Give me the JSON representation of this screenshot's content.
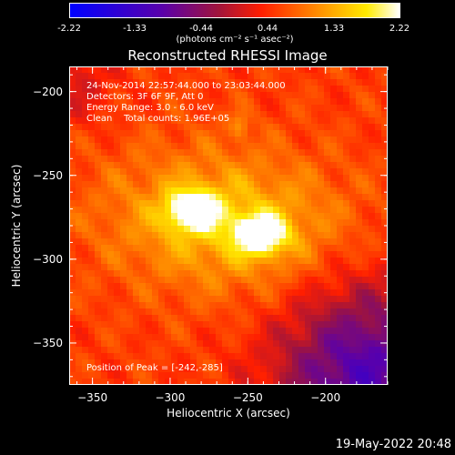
{
  "colorbar": {
    "ticks": [
      "-2.22",
      "-1.33",
      "-0.44",
      "0.44",
      "1.33",
      "2.22"
    ],
    "units": "(photons cm⁻² s⁻¹ asec⁻²)"
  },
  "plot": {
    "title": "Reconstructed RHESSI Image",
    "info": {
      "time": "24-Nov-2014 22:57:44.000 to 23:03:44.000",
      "detectors": "Detectors: 3F 6F 9F, Att 0",
      "energy": "Energy Range: 3.0 - 6.0 keV",
      "clean": "Clean    Total counts: 1.96E+05"
    },
    "peak": "Position of Peak = [-242,-285]"
  },
  "footer": {
    "timestamp": "19-May-2022 20:48"
  },
  "chart_data": {
    "type": "heatmap",
    "title": "Reconstructed RHESSI Image",
    "xlabel": "Heliocentric X (arcsec)",
    "ylabel": "Heliocentric Y (arcsec)",
    "xlim": [
      -365,
      -160
    ],
    "ylim": [
      -375,
      -185
    ],
    "xticks": [
      -350,
      -300,
      -250,
      -200
    ],
    "yticks": [
      -200,
      -250,
      -300,
      -350
    ],
    "xtick_labels": [
      "−350",
      "−300",
      "−250",
      "−200"
    ],
    "ytick_labels": [
      "−200",
      "−250",
      "−300",
      "−350"
    ],
    "colorbar_range": [
      -2.22,
      2.22
    ],
    "colormap": [
      "#0000ff",
      "#5a00aa",
      "#a0143c",
      "#ff1e00",
      "#ff8c00",
      "#ffeb00",
      "#ffffff"
    ],
    "sources": [
      {
        "x": -285,
        "y": -271,
        "peak": 2.2
      },
      {
        "x": -242,
        "y": -285,
        "peak": 2.2
      }
    ],
    "peak_position": [
      -242,
      -285
    ]
  }
}
